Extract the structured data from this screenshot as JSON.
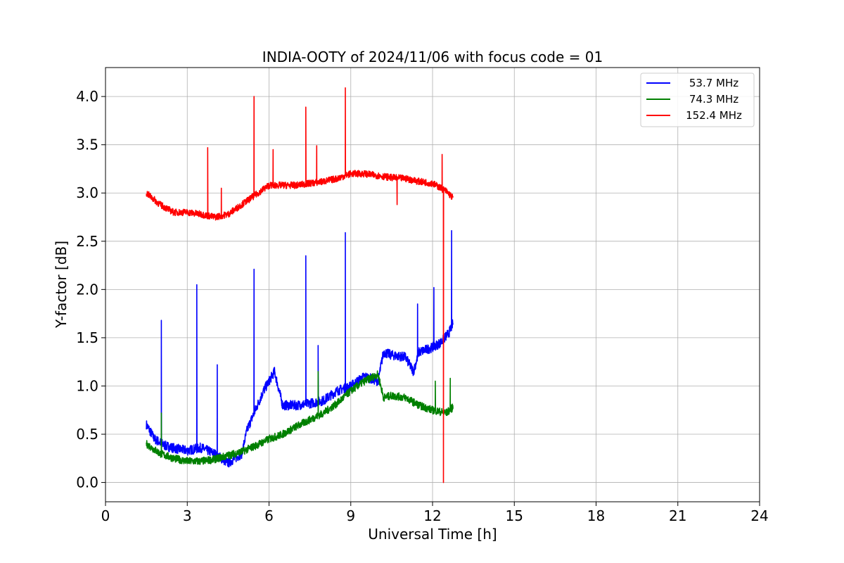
{
  "chart_data": {
    "type": "line",
    "title": "INDIA-OOTY of 2024/11/06 with focus code = 01",
    "xlabel": "Universal Time [h]",
    "ylabel": "Y-factor [dB]",
    "xlim": [
      0,
      24
    ],
    "ylim": [
      -0.2,
      4.3
    ],
    "xticks": [
      0,
      3,
      6,
      9,
      12,
      15,
      18,
      21,
      24
    ],
    "yticks": [
      0.0,
      0.5,
      1.0,
      1.5,
      2.0,
      2.5,
      3.0,
      3.5,
      4.0
    ],
    "xtick_labels": [
      "0",
      "3",
      "6",
      "9",
      "12",
      "15",
      "18",
      "21",
      "24"
    ],
    "ytick_labels": [
      "0.0",
      "0.5",
      "1.0",
      "1.5",
      "2.0",
      "2.5",
      "3.0",
      "3.5",
      "4.0"
    ],
    "grid": true,
    "legend_position": "top-right",
    "series": [
      {
        "name": "53.7 MHz",
        "color": "#0000ff",
        "noise": 0.05,
        "x": [
          1.5,
          1.8,
          2.2,
          2.6,
          3.0,
          3.5,
          4.0,
          4.5,
          5.0,
          5.2,
          5.5,
          5.8,
          6.0,
          6.2,
          6.5,
          7.0,
          7.5,
          8.0,
          8.5,
          9.0,
          9.5,
          10.0,
          10.2,
          10.5,
          11.0,
          11.3,
          11.5,
          12.0,
          12.3,
          12.6,
          12.75
        ],
        "y": [
          0.6,
          0.45,
          0.38,
          0.35,
          0.33,
          0.36,
          0.3,
          0.2,
          0.3,
          0.55,
          0.75,
          0.95,
          1.05,
          1.15,
          0.8,
          0.8,
          0.82,
          0.85,
          0.95,
          1.0,
          1.1,
          1.05,
          1.35,
          1.32,
          1.3,
          1.15,
          1.35,
          1.4,
          1.45,
          1.55,
          1.65
        ],
        "spikes": [
          {
            "x": 2.05,
            "y": 1.68
          },
          {
            "x": 3.35,
            "y": 2.05
          },
          {
            "x": 4.1,
            "y": 1.22
          },
          {
            "x": 5.45,
            "y": 2.21
          },
          {
            "x": 7.35,
            "y": 2.35
          },
          {
            "x": 7.8,
            "y": 1.42
          },
          {
            "x": 8.8,
            "y": 2.59
          },
          {
            "x": 11.45,
            "y": 1.85
          },
          {
            "x": 12.05,
            "y": 2.02
          },
          {
            "x": 12.7,
            "y": 2.61
          }
        ]
      },
      {
        "name": "74.3 MHz",
        "color": "#008000",
        "noise": 0.04,
        "x": [
          1.5,
          2.0,
          2.5,
          3.0,
          3.5,
          4.0,
          4.5,
          5.0,
          5.5,
          6.0,
          6.5,
          7.0,
          7.5,
          8.0,
          8.5,
          9.0,
          9.5,
          10.0,
          10.2,
          10.5,
          11.0,
          11.5,
          12.0,
          12.5,
          12.75
        ],
        "y": [
          0.4,
          0.3,
          0.25,
          0.22,
          0.22,
          0.24,
          0.28,
          0.32,
          0.38,
          0.45,
          0.5,
          0.58,
          0.65,
          0.72,
          0.82,
          0.95,
          1.05,
          1.12,
          0.88,
          0.9,
          0.88,
          0.8,
          0.75,
          0.72,
          0.78
        ],
        "spikes": [
          {
            "x": 2.05,
            "y": 0.72
          },
          {
            "x": 7.8,
            "y": 1.15
          },
          {
            "x": 12.1,
            "y": 1.05
          },
          {
            "x": 12.65,
            "y": 1.08
          }
        ]
      },
      {
        "name": "152.4 MHz",
        "color": "#ff0000",
        "noise": 0.035,
        "x": [
          1.5,
          2.0,
          2.5,
          3.0,
          3.5,
          4.0,
          4.5,
          5.0,
          5.5,
          6.0,
          6.5,
          7.0,
          7.5,
          8.0,
          8.5,
          9.0,
          9.5,
          10.0,
          10.5,
          11.0,
          11.5,
          12.0,
          12.5,
          12.75
        ],
        "y": [
          3.0,
          2.88,
          2.8,
          2.8,
          2.78,
          2.75,
          2.78,
          2.88,
          2.98,
          3.08,
          3.08,
          3.08,
          3.1,
          3.12,
          3.15,
          3.2,
          3.2,
          3.18,
          3.16,
          3.15,
          3.12,
          3.1,
          3.02,
          2.95
        ],
        "spikes": [
          {
            "x": 3.75,
            "y": 3.47
          },
          {
            "x": 4.25,
            "y": 3.05
          },
          {
            "x": 5.45,
            "y": 4.0
          },
          {
            "x": 6.15,
            "y": 3.45
          },
          {
            "x": 7.35,
            "y": 3.89
          },
          {
            "x": 7.75,
            "y": 3.49
          },
          {
            "x": 8.8,
            "y": 4.09
          },
          {
            "x": 10.7,
            "y": 2.88
          },
          {
            "x": 12.35,
            "y": 3.4
          },
          {
            "x": 12.4,
            "y": 0.0
          }
        ]
      }
    ]
  }
}
